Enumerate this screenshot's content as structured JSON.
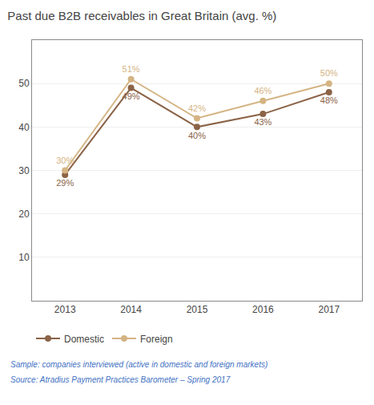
{
  "chart_data": {
    "type": "line",
    "title": "Past due B2B receivables in Great Britain (avg. %)",
    "x": [
      2013,
      2014,
      2015,
      2016,
      2017
    ],
    "series": [
      {
        "name": "Domestic",
        "color": "#8B6347",
        "marker": "circle",
        "values": [
          29,
          49,
          40,
          43,
          48
        ],
        "value_labels": [
          "29%",
          "49%",
          "40%",
          "43%",
          "48%"
        ]
      },
      {
        "name": "Foreign",
        "color": "#D4B483",
        "marker": "circle",
        "values": [
          30,
          51,
          42,
          46,
          50
        ],
        "value_labels": [
          "30%",
          "51%",
          "42%",
          "46%",
          "50%"
        ]
      }
    ],
    "xlim": [
      2012.5,
      2017.5
    ],
    "xticks": [
      2013,
      2014,
      2015,
      2016,
      2017
    ],
    "ylim": [
      0,
      60
    ],
    "yticks": [
      10,
      20,
      30,
      40,
      50
    ],
    "grid": true,
    "data_labels": true,
    "legend": "bottom",
    "annotations": [
      "Sample: companies interviewed (active in domestic and foreign markets)",
      "Source: Atradius Payment Practices Barometer – Spring 2017"
    ]
  }
}
